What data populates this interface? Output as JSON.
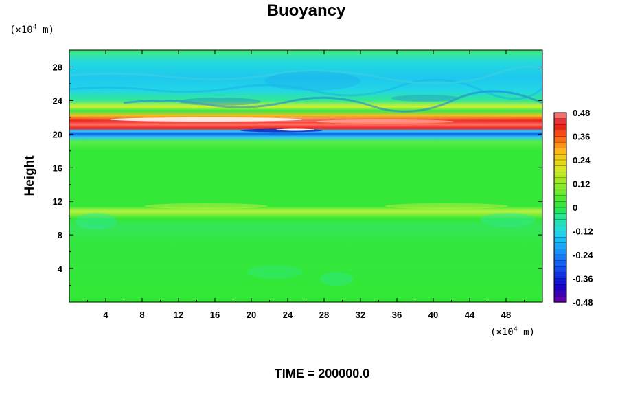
{
  "chart_data": {
    "type": "heatmap",
    "title": "Buoyancy",
    "ylabel": "Height",
    "xlabel": "",
    "x_unit": {
      "prefix": "(×10",
      "exp": "4",
      "suffix": " m)"
    },
    "y_unit": {
      "prefix": "(×10",
      "exp": "4",
      "suffix": " m)"
    },
    "footer": "TIME = 200000.0",
    "xlim": [
      0,
      52
    ],
    "ylim": [
      0,
      30
    ],
    "x_ticks": [
      "4",
      "8",
      "12",
      "16",
      "20",
      "24",
      "28",
      "32",
      "36",
      "40",
      "44",
      "48"
    ],
    "y_ticks": [
      "4",
      "8",
      "12",
      "16",
      "20",
      "24",
      "28"
    ],
    "colorbar": {
      "range": [
        -0.48,
        0.48
      ],
      "tick_labels": [
        "0.48",
        "0.36",
        "0.24",
        "0.12",
        "0",
        "-0.12",
        "-0.24",
        "-0.36",
        "-0.48"
      ]
    },
    "field_description_bands": [
      {
        "height": 21.4,
        "value": 0.44,
        "note": "strong positive band"
      },
      {
        "height": 20.5,
        "value": -0.34,
        "note": "negative band"
      },
      {
        "height": 22.5,
        "value": 0.2,
        "note": "weaker positive band"
      },
      {
        "height": 25.0,
        "value": -0.16,
        "note": "upper cyan layer"
      },
      {
        "height": 11.2,
        "value": 0.06,
        "note": "faint positive layer"
      }
    ]
  },
  "colors": {
    "background_value_zero": "#33ee33",
    "frame": "#000000"
  }
}
